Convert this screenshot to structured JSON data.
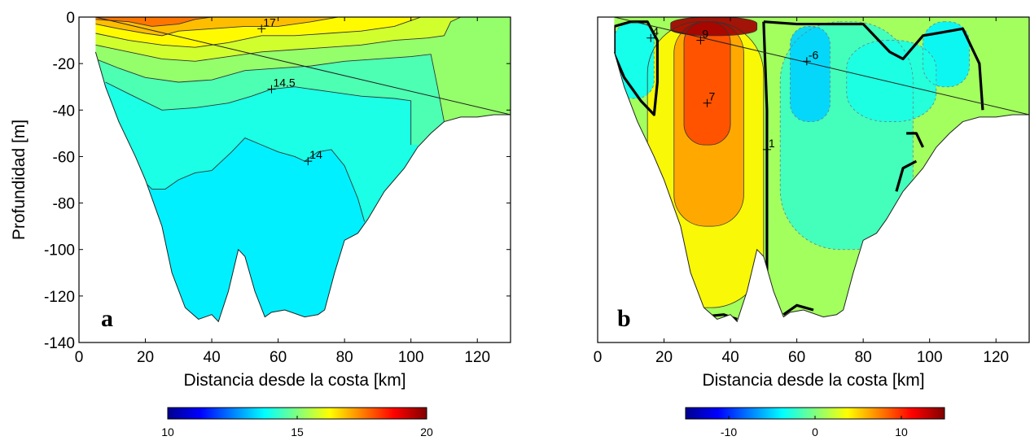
{
  "chart_data": [
    {
      "type": "contour",
      "panel_label": "a",
      "xlabel": "Distancia desde la costa [km]",
      "ylabel": "Profundidad [m]",
      "xlim": [
        0,
        130
      ],
      "ylim": [
        -140,
        0
      ],
      "xticks": [
        0,
        20,
        40,
        60,
        80,
        100,
        120
      ],
      "yticks": [
        0,
        -20,
        -40,
        -60,
        -80,
        -100,
        -120,
        -140
      ],
      "colorbar": {
        "min": 10,
        "max": 20,
        "ticks": [
          10,
          15,
          20
        ]
      },
      "bottom_profile": [
        [
          5,
          -15
        ],
        [
          8,
          -30
        ],
        [
          12,
          -45
        ],
        [
          17,
          -60
        ],
        [
          20,
          -70
        ],
        [
          25,
          -90
        ],
        [
          28,
          -110
        ],
        [
          32,
          -125
        ],
        [
          36,
          -130
        ],
        [
          40,
          -128
        ],
        [
          42,
          -131
        ],
        [
          45,
          -118
        ],
        [
          48,
          -100
        ],
        [
          50,
          -103
        ],
        [
          53,
          -118
        ],
        [
          56,
          -129
        ],
        [
          58,
          -127
        ],
        [
          62,
          -126
        ],
        [
          68,
          -129
        ],
        [
          72,
          -128
        ],
        [
          74,
          -126
        ],
        [
          77,
          -110
        ],
        [
          80,
          -96
        ],
        [
          84,
          -93
        ],
        [
          87,
          -87
        ],
        [
          92,
          -75
        ],
        [
          98,
          -65
        ],
        [
          102,
          -56
        ],
        [
          106,
          -50
        ],
        [
          110,
          -45
        ],
        [
          115,
          -43
        ],
        [
          120,
          -43
        ],
        [
          125,
          -42
        ],
        [
          130,
          -42
        ]
      ],
      "regions": [
        {
          "value": 14.0,
          "boundary": [
            [
              16,
              -66
            ],
            [
              22,
              -74
            ],
            [
              26,
              -74
            ],
            [
              30,
              -70
            ],
            [
              35,
              -67
            ],
            [
              40,
              -66
            ],
            [
              46,
              -58
            ],
            [
              50,
              -52
            ],
            [
              55,
              -55
            ],
            [
              60,
              -58
            ],
            [
              65,
              -60
            ],
            [
              68,
              -62
            ],
            [
              72,
              -58
            ],
            [
              76,
              -57
            ],
            [
              80,
              -64
            ],
            [
              84,
              -78
            ],
            [
              86,
              -88
            ]
          ]
        },
        {
          "value": 14.5,
          "boundary": [
            [
              8,
              -28
            ],
            [
              15,
              -33
            ],
            [
              25,
              -40
            ],
            [
              35,
              -39
            ],
            [
              45,
              -37
            ],
            [
              52,
              -34
            ],
            [
              58,
              -31
            ],
            [
              65,
              -30
            ],
            [
              75,
              -32
            ],
            [
              85,
              -34
            ],
            [
              95,
              -35
            ],
            [
              100,
              -36
            ],
            [
              100,
              -55
            ]
          ]
        },
        {
          "value": 15.2,
          "boundary": [
            [
              5,
              -18
            ],
            [
              12,
              -22
            ],
            [
              20,
              -26
            ],
            [
              30,
              -28
            ],
            [
              40,
              -27
            ],
            [
              50,
              -23
            ],
            [
              60,
              -22
            ],
            [
              70,
              -21
            ],
            [
              80,
              -19
            ],
            [
              90,
              -18
            ],
            [
              100,
              -17
            ],
            [
              106,
              -16
            ],
            [
              108,
              -30
            ],
            [
              110,
              -45
            ]
          ]
        },
        {
          "value": 15.8,
          "boundary": [
            [
              5,
              -12
            ],
            [
              15,
              -15
            ],
            [
              25,
              -18
            ],
            [
              35,
              -19
            ],
            [
              45,
              -17
            ],
            [
              55,
              -15
            ],
            [
              65,
              -14
            ],
            [
              75,
              -13
            ],
            [
              85,
              -12
            ],
            [
              95,
              -10
            ],
            [
              105,
              -9
            ],
            [
              110,
              -8
            ],
            [
              112,
              -2
            ],
            [
              115,
              0
            ]
          ]
        },
        {
          "value": 16.3,
          "boundary": [
            [
              5,
              -7
            ],
            [
              15,
              -10
            ],
            [
              25,
              -12
            ],
            [
              35,
              -13
            ],
            [
              45,
              -11
            ],
            [
              55,
              -8
            ],
            [
              65,
              -8
            ],
            [
              75,
              -7
            ],
            [
              85,
              -6
            ],
            [
              95,
              -4
            ],
            [
              103,
              0
            ]
          ]
        },
        {
          "value": 16.9,
          "boundary": [
            [
              5,
              -3
            ],
            [
              12,
              -5
            ],
            [
              20,
              -7
            ],
            [
              25,
              -8
            ],
            [
              30,
              -6
            ],
            [
              40,
              -5
            ],
            [
              50,
              -4
            ],
            [
              60,
              -4
            ],
            [
              70,
              -2
            ],
            [
              78,
              0
            ]
          ]
        },
        {
          "value": 17.6,
          "boundary": [
            [
              5,
              -1
            ],
            [
              15,
              -2
            ],
            [
              22,
              -4
            ],
            [
              30,
              -3
            ],
            [
              35,
              -1
            ],
            [
              40,
              0
            ]
          ]
        }
      ],
      "labels": [
        {
          "text": "17",
          "x": 55,
          "y": -5
        },
        {
          "text": "14.5",
          "x": 58,
          "y": -31
        },
        {
          "text": "14",
          "x": 69,
          "y": -62
        }
      ]
    },
    {
      "type": "contour",
      "panel_label": "b",
      "xlabel": "Distancia desde la costa [km]",
      "ylabel": "",
      "xlim": [
        0,
        130
      ],
      "ylim": [
        -140,
        0
      ],
      "xticks": [
        0,
        20,
        40,
        60,
        80,
        100,
        120
      ],
      "colorbar": {
        "min": -15,
        "max": 15,
        "ticks": [
          -10,
          0,
          10
        ]
      },
      "bottom_profile": [
        [
          5,
          -15
        ],
        [
          8,
          -30
        ],
        [
          12,
          -45
        ],
        [
          17,
          -60
        ],
        [
          20,
          -70
        ],
        [
          25,
          -90
        ],
        [
          28,
          -110
        ],
        [
          32,
          -125
        ],
        [
          36,
          -130
        ],
        [
          40,
          -128
        ],
        [
          42,
          -131
        ],
        [
          45,
          -118
        ],
        [
          48,
          -100
        ],
        [
          50,
          -103
        ],
        [
          53,
          -118
        ],
        [
          56,
          -129
        ],
        [
          58,
          -127
        ],
        [
          62,
          -126
        ],
        [
          68,
          -129
        ],
        [
          72,
          -128
        ],
        [
          74,
          -126
        ],
        [
          77,
          -110
        ],
        [
          80,
          -96
        ],
        [
          84,
          -93
        ],
        [
          87,
          -87
        ],
        [
          92,
          -75
        ],
        [
          98,
          -65
        ],
        [
          102,
          -56
        ],
        [
          106,
          -50
        ],
        [
          110,
          -45
        ],
        [
          115,
          -43
        ],
        [
          120,
          -43
        ],
        [
          125,
          -42
        ],
        [
          130,
          -42
        ]
      ],
      "background_value": 1,
      "blobs": [
        {
          "value": 4,
          "x": [
            15,
            50
          ],
          "y": [
            -125,
            -2
          ],
          "soft": 0.3
        },
        {
          "value": 6.5,
          "x": [
            23,
            44
          ],
          "y": [
            -90,
            -2
          ],
          "soft": 0.25
        },
        {
          "value": 9,
          "x": [
            26,
            40
          ],
          "y": [
            -55,
            -2
          ],
          "soft": 0.2
        },
        {
          "value": 14,
          "x": [
            22,
            48
          ],
          "y": [
            -8,
            0
          ],
          "soft": 0.15
        },
        {
          "value": -3.5,
          "x": [
            5,
            17
          ],
          "y": [
            -35,
            -2
          ],
          "soft": 0.25
        },
        {
          "value": -2,
          "x": [
            55,
            95
          ],
          "y": [
            -100,
            -2
          ],
          "soft": 0.3
        },
        {
          "value": -5,
          "x": [
            58,
            70
          ],
          "y": [
            -45,
            -4
          ],
          "soft": 0.25
        },
        {
          "value": -4,
          "x": [
            98,
            112
          ],
          "y": [
            -30,
            -2
          ],
          "soft": 0.25
        },
        {
          "value": -3,
          "x": [
            75,
            102
          ],
          "y": [
            -45,
            -10
          ],
          "soft": 0.35
        }
      ],
      "zero_lines": [
        [
          [
            5,
            -4
          ],
          [
            10,
            -2
          ],
          [
            15,
            -2
          ],
          [
            18,
            -10
          ],
          [
            18,
            -28
          ],
          [
            17,
            -42
          ],
          [
            13,
            -36
          ],
          [
            8,
            -26
          ],
          [
            5,
            -16
          ],
          [
            5,
            -4
          ]
        ],
        [
          [
            50,
            -2
          ],
          [
            51,
            -40
          ],
          [
            51,
            -80
          ],
          [
            51,
            -118
          ],
          [
            52,
            -128
          ]
        ],
        [
          [
            50,
            -2
          ],
          [
            60,
            -3
          ],
          [
            80,
            -3
          ],
          [
            88,
            -15
          ],
          [
            92,
            -18
          ],
          [
            98,
            -8
          ],
          [
            110,
            -5
          ],
          [
            115,
            -20
          ],
          [
            116,
            -40
          ]
        ],
        [
          [
            90,
            -75
          ],
          [
            92,
            -65
          ],
          [
            96,
            -62
          ]
        ],
        [
          [
            93,
            -50
          ],
          [
            96,
            -50
          ],
          [
            98,
            -56
          ]
        ],
        [
          [
            56,
            -128
          ],
          [
            60,
            -124
          ],
          [
            65,
            -126
          ]
        ],
        [
          [
            31,
            -129
          ],
          [
            38,
            -128
          ],
          [
            42,
            -130
          ]
        ]
      ],
      "labels": [
        {
          "text": "4",
          "x": 16,
          "y": -9
        },
        {
          "text": "9",
          "x": 31,
          "y": -10
        },
        {
          "text": "-6",
          "x": 63,
          "y": -19
        },
        {
          "text": "7",
          "x": 33,
          "y": -37
        },
        {
          "text": "1",
          "x": 51,
          "y": -57
        }
      ]
    }
  ]
}
